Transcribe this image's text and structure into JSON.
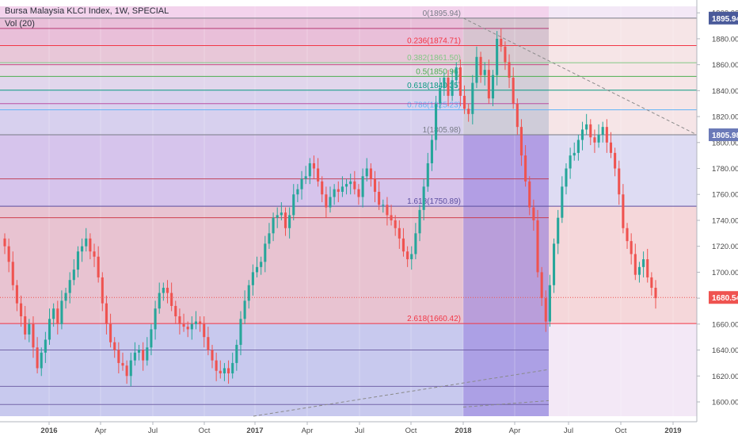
{
  "header": {
    "title": "Bursa Malaysia KLCI Index, 1W, SPECIAL",
    "volume_label": "Vol (20)"
  },
  "colors": {
    "up": "#26a69a",
    "down": "#ef5350",
    "axis_text": "#4a4a4a",
    "last_price_bg": "#ef5350",
    "top_price_bg": "#4a5a9a",
    "fib_1_price_bg": "#6b7ab8"
  },
  "price_axis": {
    "ticks": [
      "1600.00",
      "1620.00",
      "1640.00",
      "1660.00",
      "1680.00",
      "1700.00",
      "1720.00",
      "1740.00",
      "1760.00",
      "1780.00",
      "1800.00",
      "1820.00",
      "1840.00",
      "1860.00",
      "1880.00",
      "1900.00"
    ],
    "labels": {
      "top": "1895.94",
      "fib_1": "1805.98",
      "last": "1680.54"
    }
  },
  "time_axis": {
    "labels": [
      "2016",
      "Apr",
      "Jul",
      "Oct",
      "2017",
      "Apr",
      "Jul",
      "Oct",
      "2018",
      "Apr",
      "Jul",
      "Oct",
      "2019"
    ]
  },
  "fib_levels": [
    {
      "label": "0(1895.94)",
      "price": 1895.94,
      "color": "#787b86"
    },
    {
      "label": "0.236(1874.71)",
      "price": 1874.71,
      "color": "#f23645"
    },
    {
      "label": "0.382(1861.50)",
      "price": 1861.5,
      "color": "#81c784"
    },
    {
      "label": "0.5(1850.96)",
      "price": 1850.96,
      "color": "#4caf50"
    },
    {
      "label": "0.618(1840.35)",
      "price": 1840.35,
      "color": "#089981"
    },
    {
      "label": "0.786(1825.23)",
      "price": 1825.23,
      "color": "#64b5f6"
    },
    {
      "label": "1(1805.98)",
      "price": 1805.98,
      "color": "#787b86"
    },
    {
      "label": "1.618(1750.89)",
      "price": 1750.89,
      "color": "#5b4ea0"
    },
    {
      "label": "2.618(1660.42)",
      "price": 1660.42,
      "color": "#f23645"
    }
  ],
  "chart_data": {
    "type": "candlestick",
    "title": "Bursa Malaysia KLCI Index, 1W, SPECIAL",
    "ylim": [
      1589,
      1905
    ],
    "last_price": 1680.54,
    "x": [
      "2016",
      "Apr",
      "Jul",
      "Oct",
      "2017",
      "Apr",
      "Jul",
      "Oct",
      "2018",
      "Apr",
      "Jul",
      "Oct",
      "2019"
    ],
    "weekly_close": [
      1720,
      1708,
      1690,
      1676,
      1666,
      1652,
      1660,
      1642,
      1626,
      1638,
      1648,
      1664,
      1672,
      1660,
      1678,
      1684,
      1694,
      1702,
      1716,
      1720,
      1726,
      1716,
      1712,
      1696,
      1676,
      1660,
      1646,
      1640,
      1630,
      1628,
      1620,
      1632,
      1638,
      1640,
      1632,
      1642,
      1656,
      1672,
      1684,
      1688,
      1684,
      1674,
      1666,
      1660,
      1658,
      1656,
      1660,
      1662,
      1660,
      1650,
      1640,
      1632,
      1624,
      1622,
      1626,
      1622,
      1630,
      1644,
      1664,
      1678,
      1690,
      1700,
      1704,
      1708,
      1722,
      1730,
      1742,
      1744,
      1746,
      1734,
      1744,
      1760,
      1764,
      1772,
      1774,
      1784,
      1780,
      1770,
      1760,
      1750,
      1758,
      1764,
      1762,
      1766,
      1768,
      1770,
      1764,
      1758,
      1774,
      1780,
      1772,
      1762,
      1752,
      1752,
      1744,
      1740,
      1734,
      1726,
      1716,
      1710,
      1714,
      1730,
      1748,
      1766,
      1784,
      1802,
      1830,
      1842,
      1850,
      1836,
      1848,
      1858,
      1836,
      1826,
      1822,
      1846,
      1866,
      1852,
      1856,
      1834,
      1852,
      1880,
      1874,
      1862,
      1850,
      1830,
      1812,
      1790,
      1770,
      1750,
      1740,
      1700,
      1680,
      1662,
      1690,
      1722,
      1742,
      1766,
      1780,
      1790,
      1792,
      1802,
      1810,
      1814,
      1804,
      1800,
      1806,
      1812,
      1800,
      1792,
      1780,
      1760,
      1734,
      1724,
      1714,
      1698,
      1704,
      1710,
      1696,
      1688,
      1680
    ],
    "indices": [
      {
        "name": "0",
        "value": 1895.94
      },
      {
        "name": "0.236",
        "value": 1874.71
      },
      {
        "name": "0.382",
        "value": 1861.5
      },
      {
        "name": "0.5",
        "value": 1850.96
      },
      {
        "name": "0.618",
        "value": 1840.35
      },
      {
        "name": "0.786",
        "value": 1825.23
      },
      {
        "name": "1",
        "value": 1805.98
      },
      {
        "name": "1.618",
        "value": 1750.89
      },
      {
        "name": "2.618",
        "value": 1660.42
      }
    ]
  }
}
